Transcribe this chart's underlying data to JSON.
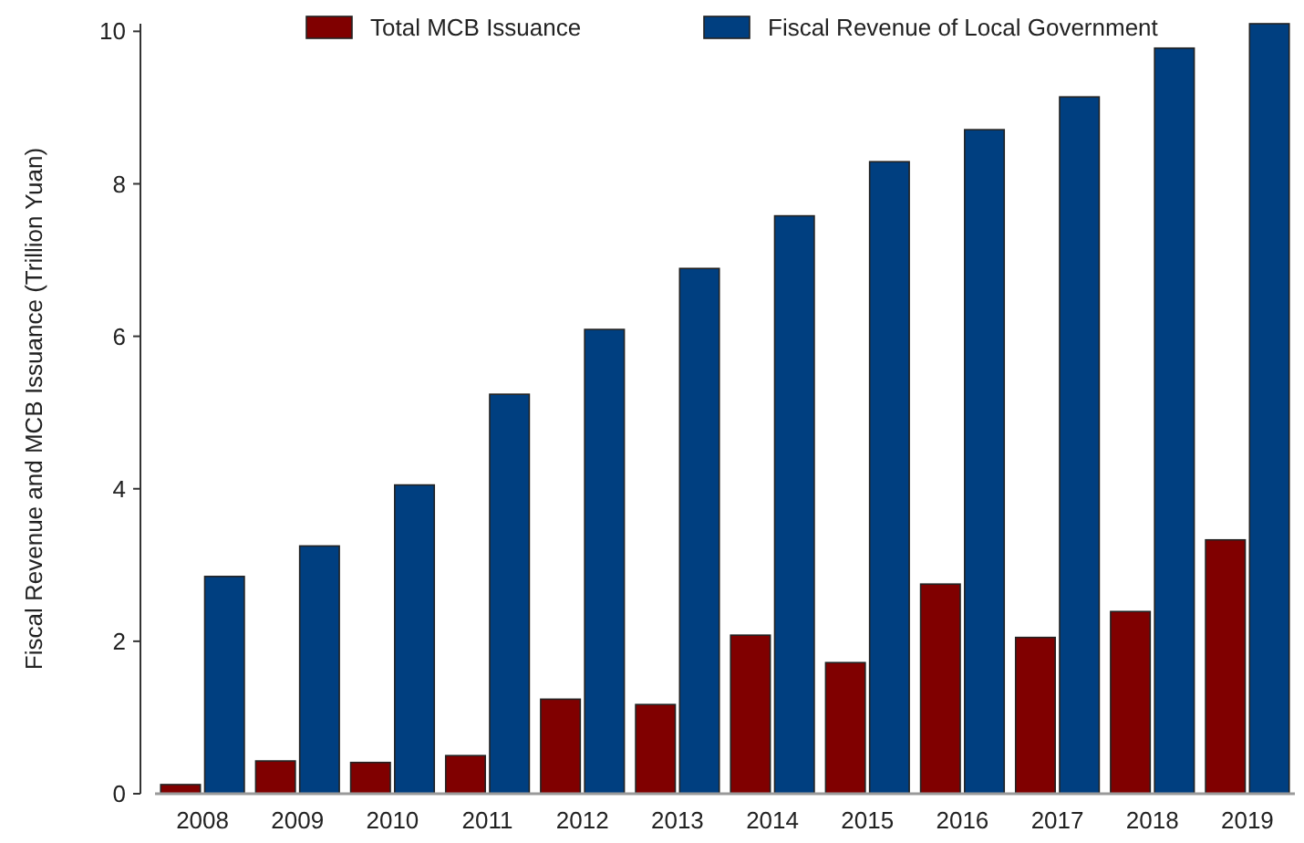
{
  "chart_data": {
    "type": "bar",
    "ylabel": "Fiscal Revenue and MCB Issuance (Trillion Yuan)",
    "categories": [
      "2008",
      "2009",
      "2010",
      "2011",
      "2012",
      "2013",
      "2014",
      "2015",
      "2016",
      "2017",
      "2018",
      "2019"
    ],
    "series": [
      {
        "name": "Total MCB Issuance",
        "color": "#800000",
        "values": [
          0.12,
          0.43,
          0.41,
          0.5,
          1.24,
          1.17,
          2.08,
          1.72,
          2.75,
          2.05,
          2.39,
          3.33
        ]
      },
      {
        "name": "Fiscal Revenue of Local Government",
        "color": "#003f80",
        "values": [
          2.85,
          3.25,
          4.05,
          5.24,
          6.09,
          6.89,
          7.58,
          8.29,
          8.71,
          9.14,
          9.78,
          10.1
        ]
      }
    ],
    "ylim": [
      0,
      10.1
    ],
    "yticks": [
      0,
      2,
      4,
      6,
      8,
      10
    ],
    "legend": "top",
    "grid": false
  }
}
